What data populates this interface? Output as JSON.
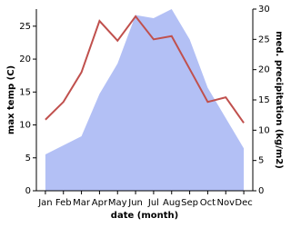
{
  "chart_data": {
    "type": "line",
    "x_label": "date (month)",
    "y_label": "max temp (C)",
    "y2_label": "med. precipitation (kg/m2)",
    "categories": [
      "Jan",
      "Feb",
      "Mar",
      "Apr",
      "May",
      "Jun",
      "Jul",
      "Aug",
      "Sep",
      "Oct",
      "Nov",
      "Dec"
    ],
    "ylim": [
      0,
      27.6
    ],
    "yticks": [
      0,
      5,
      10,
      15,
      20,
      25
    ],
    "y2lim": [
      0,
      30
    ],
    "y2ticks": [
      0,
      5,
      10,
      15,
      20,
      25,
      30
    ],
    "series": [
      {
        "name": "med. precipitation",
        "style": "area",
        "axis": "y2",
        "color": "#b3c0f5",
        "values": [
          6,
          7.5,
          9,
          16,
          21,
          29,
          28.5,
          30,
          25,
          17,
          12,
          7
        ]
      },
      {
        "name": "max temp",
        "style": "line",
        "color": "#c0504d",
        "values": [
          10.8,
          13.5,
          18,
          25.8,
          22.8,
          26.5,
          23,
          23.5,
          18.5,
          13.5,
          14.2,
          10.3
        ]
      }
    ]
  }
}
